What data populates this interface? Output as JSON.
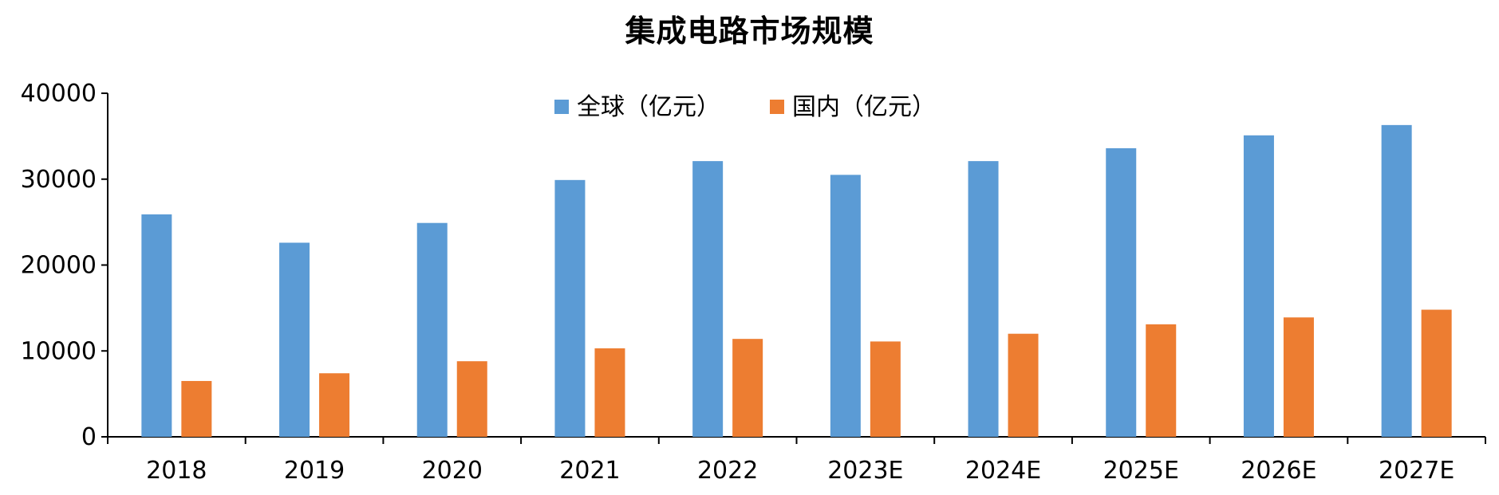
{
  "chart_data": {
    "type": "bar",
    "title": "集成电路市场规模",
    "xlabel": "",
    "ylabel": "",
    "categories": [
      "2018",
      "2019",
      "2020",
      "2021",
      "2022",
      "2023E",
      "2024E",
      "2025E",
      "2026E",
      "2027E"
    ],
    "series": [
      {
        "name": "全球（亿元）",
        "color": "#5B9BD5",
        "values": [
          25900,
          22600,
          24900,
          29900,
          32100,
          30500,
          32100,
          33600,
          35100,
          36300
        ]
      },
      {
        "name": "国内（亿元）",
        "color": "#ED7D31",
        "values": [
          6500,
          7400,
          8800,
          10300,
          11400,
          11100,
          12000,
          13100,
          13900,
          14800
        ]
      }
    ],
    "ylim": [
      0,
      40000
    ],
    "yticks": [
      0,
      10000,
      20000,
      30000,
      40000
    ],
    "grid": false,
    "legend_position": "top-center"
  }
}
